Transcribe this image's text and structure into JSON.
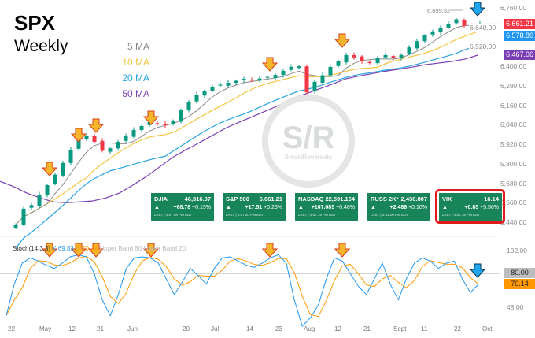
{
  "header": {
    "title": "SPX",
    "subtitle": "Weekly"
  },
  "ma_legend": [
    {
      "label": "5 MA",
      "color": "#8a8a8a"
    },
    {
      "label": "10 MA",
      "color": "#f4c542"
    },
    {
      "label": "20 MA",
      "color": "#29a3e0"
    },
    {
      "label": "50 MA",
      "color": "#7b3fb5"
    }
  ],
  "watermark": {
    "logo": "S/R",
    "name": "SmartReversals"
  },
  "tickers": [
    {
      "name": "DJIA",
      "price": "46,316.07",
      "change": "+68.78",
      "pct": "+0.15%",
      "time": "LAST | 4:07:08 PM EDT"
    },
    {
      "name": "S&P 500",
      "price": "6,661.21",
      "change": "+17.51",
      "pct": "+0.26%",
      "time": "LAST | 4:07:20 PM EDT"
    },
    {
      "name": "NASDAQ",
      "price": "22,591.154",
      "change": "+107.085",
      "pct": "+0.48%",
      "time": "LAST | 4:07:19 PM EDT"
    },
    {
      "name": "RUSS 2K*",
      "price": "2,436.807",
      "change": "+2.486",
      "pct": "+0.10%",
      "time": "LAST | 3:51:00 PM EDT"
    },
    {
      "name": "VIX",
      "price": "16.14",
      "change": "+0.85",
      "pct": "+5.56%",
      "time": "LAST | 4:07:16 PM EDT"
    }
  ],
  "up_glyph": "▲",
  "price_labels": {
    "last": "6,661.21",
    "ma20": "6,578.80",
    "ma50": "6,467.06",
    "high_marker": "6,699.52"
  },
  "stoch": {
    "legend": "Stoch(14,3,3)",
    "k": "K 69.83",
    "d": "D 70.14",
    "upper": "Upper Band 80",
    "lower": "Lower Band 20",
    "label_80": "80.00",
    "label_d": "70.14"
  },
  "chart_data": [
    {
      "type": "candlestick",
      "title": "SPX",
      "ylim": [
        5400,
        6800
      ],
      "yticks": [
        "6,760.00",
        "6,640.00",
        "6,520.00",
        "6,400.00",
        "6,280.00",
        "6,160.00",
        "6,040.00",
        "5,920.00",
        "5,800.00",
        "5,680.00",
        "5,560.00",
        "5,440.00"
      ],
      "ytick_values": [
        6760,
        6640,
        6520,
        6400,
        6280,
        6160,
        6040,
        5920,
        5800,
        5680,
        5560,
        5440
      ],
      "xticks": [
        "22",
        "May",
        "12",
        "21",
        "Jun",
        "20",
        "Jul",
        "14",
        "23",
        "Aug",
        "12",
        "21",
        "Sept",
        "11",
        "22",
        "Oct"
      ],
      "closes": [
        5425,
        5523,
        5545,
        5610,
        5668,
        5733,
        5805,
        5886,
        5960,
        5972,
        5935,
        5880,
        5895,
        5935,
        5972,
        6008,
        6032,
        6056,
        6047,
        6037,
        6065,
        6129,
        6178,
        6226,
        6250,
        6275,
        6287,
        6299,
        6311,
        6323,
        6312,
        6325,
        6335,
        6347,
        6372,
        6396,
        6400,
        6240,
        6305,
        6345,
        6396,
        6430,
        6469,
        6455,
        6432,
        6420,
        6450,
        6469,
        6452,
        6470,
        6517,
        6555,
        6590,
        6615,
        6639,
        6660,
        6690,
        6650,
        6625,
        6661
      ],
      "ma50": [
        5692,
        5660,
        5620,
        5590,
        5565,
        5560,
        5565,
        5571,
        5590,
        5620,
        5668,
        5720,
        5780,
        5840,
        5886,
        5930,
        5975,
        6020,
        6056,
        6090,
        6125,
        6160,
        6202,
        6230,
        6260,
        6290,
        6323,
        6340,
        6355,
        6370,
        6382,
        6395,
        6410,
        6420,
        6430,
        6445,
        6470
      ],
      "annotations": {
        "high": 6699.52,
        "sell_arrows": 6,
        "final_down_arrow": true
      }
    },
    {
      "type": "line",
      "title": "Stoch(14,3,3)",
      "ylim": [
        40,
        104
      ],
      "yticks": [
        "102.00",
        "48.00"
      ],
      "ytick_values": [
        102,
        48
      ],
      "bands": [
        80,
        20
      ],
      "k": [
        40,
        70,
        90,
        95,
        92,
        88,
        85,
        90,
        96,
        98,
        96,
        80,
        55,
        40,
        60,
        85,
        95,
        96,
        95,
        90,
        75,
        60,
        72,
        85,
        78,
        70,
        85,
        95,
        96,
        92,
        88,
        86,
        90,
        95,
        98,
        90,
        55,
        30,
        38,
        50,
        75,
        95,
        92,
        80,
        68,
        60,
        75,
        90,
        70,
        55,
        75,
        90,
        95,
        92,
        85,
        90,
        92,
        75,
        62,
        69.83
      ]
    }
  ]
}
